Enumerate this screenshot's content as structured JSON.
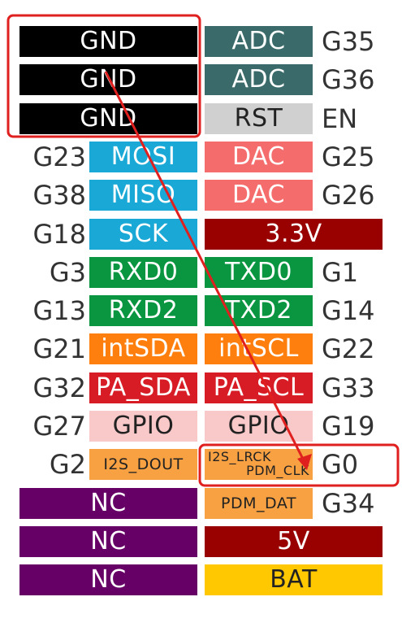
{
  "colors": {
    "black": "#000000",
    "teal": "#3a6b6a",
    "gray": "#d0d0d0",
    "skyblue": "#1aa9d6",
    "salmon": "#f56c6c",
    "darkred": "#990000",
    "green": "#0a9640",
    "orange": "#ff7f0e",
    "red": "#d71c25",
    "pink": "#f9c9c9",
    "lightorange": "#f8a142",
    "purple": "#660066",
    "yellow": "#ffc800",
    "annotation": "#e01f1f"
  },
  "rows": [
    {
      "left_pin": "",
      "left_label": "GND",
      "left_color": "black",
      "right_label": "ADC",
      "right_color": "teal",
      "right_pin": "G35"
    },
    {
      "left_pin": "",
      "left_label": "GND",
      "left_color": "black",
      "right_label": "ADC",
      "right_color": "teal",
      "right_pin": "G36"
    },
    {
      "left_pin": "",
      "left_label": "GND",
      "left_color": "black",
      "right_label": "RST",
      "right_color": "gray",
      "right_pin": "EN"
    },
    {
      "left_pin": "G23",
      "left_label": "MOSI",
      "left_color": "skyblue",
      "right_label": "DAC",
      "right_color": "salmon",
      "right_pin": "G25"
    },
    {
      "left_pin": "G38",
      "left_label": "MISO",
      "left_color": "skyblue",
      "right_label": "DAC",
      "right_color": "salmon",
      "right_pin": "G26"
    },
    {
      "left_pin": "G18",
      "left_label": "SCK",
      "left_color": "skyblue",
      "right_label": "3.3V",
      "right_color": "darkred",
      "right_pin": ""
    },
    {
      "left_pin": "G3",
      "left_label": "RXD0",
      "left_color": "green",
      "right_label": "TXD0",
      "right_color": "green",
      "right_pin": "G1"
    },
    {
      "left_pin": "G13",
      "left_label": "RXD2",
      "left_color": "green",
      "right_label": "TXD2",
      "right_color": "green",
      "right_pin": "G14"
    },
    {
      "left_pin": "G21",
      "left_label": "intSDA",
      "left_color": "orange",
      "right_label": "intSCL",
      "right_color": "orange",
      "right_pin": "G22"
    },
    {
      "left_pin": "G32",
      "left_label": "PA_SDA",
      "left_color": "red",
      "right_label": "PA_SCL",
      "right_color": "red",
      "right_pin": "G33"
    },
    {
      "left_pin": "G27",
      "left_label": "GPIO",
      "left_color": "pink",
      "right_label": "GPIO",
      "right_color": "pink",
      "right_pin": "G19"
    },
    {
      "left_pin": "G2",
      "left_label": "I2S_DOUT",
      "left_color": "lightorange",
      "right_label": "I2S_LRCK",
      "right_label_2": "PDM_CLK",
      "right_color": "lightorange",
      "right_pin": "G0"
    },
    {
      "left_pin": "",
      "left_label": "NC",
      "left_color": "purple",
      "right_label": "PDM_DAT",
      "right_color": "lightorange",
      "right_pin": "G34"
    },
    {
      "left_pin": "",
      "left_label": "NC",
      "left_color": "purple",
      "right_label": "5V",
      "right_color": "darkred",
      "right_pin": ""
    },
    {
      "left_pin": "",
      "left_label": "NC",
      "left_color": "purple",
      "right_label": "BAT",
      "right_color": "yellow",
      "right_pin": ""
    }
  ]
}
